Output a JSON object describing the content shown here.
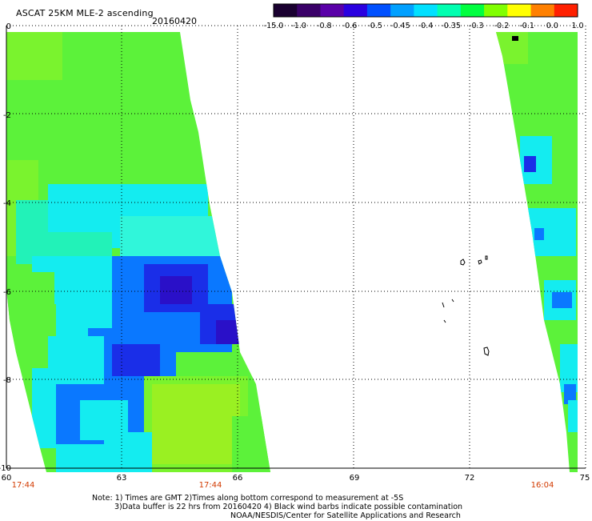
{
  "header": {
    "title": "ASCAT 25KM MLE-2 ascending",
    "date": "20160420"
  },
  "colorbar": {
    "labels": [
      "-15.0",
      "-1.0",
      "-0.8",
      "-0.6",
      "-0.5",
      "-0.45",
      "-0.4",
      "-0.35",
      "-0.3",
      "-0.2",
      "-0.1",
      "0.0",
      "1.0"
    ],
    "colors": [
      "#1a0030",
      "#3a0068",
      "#5a00a8",
      "#2a00e0",
      "#0050ff",
      "#00a0ff",
      "#00e0ff",
      "#00ffb0",
      "#00ff40",
      "#80ff00",
      "#ffff00",
      "#ff8000",
      "#ff2000"
    ]
  },
  "map": {
    "lat_labels": [
      "0",
      "-2",
      "-4",
      "-6",
      "-8",
      "-10"
    ],
    "lon_labels": [
      "60",
      "63",
      "66",
      "69",
      "72",
      "75"
    ],
    "time_labels": [
      "17:44",
      "17:44",
      "16:04"
    ]
  },
  "notes": {
    "line1": "Note: 1) Times are GMT 2)Times along bottom correspond to measurement at -5S",
    "line2": "3)Data buffer is 22 hrs from 20160420 4) Black wind barbs indicate possible contamination",
    "line3": "NOAA/NESDIS/Center for Satellite Applications and Research"
  }
}
